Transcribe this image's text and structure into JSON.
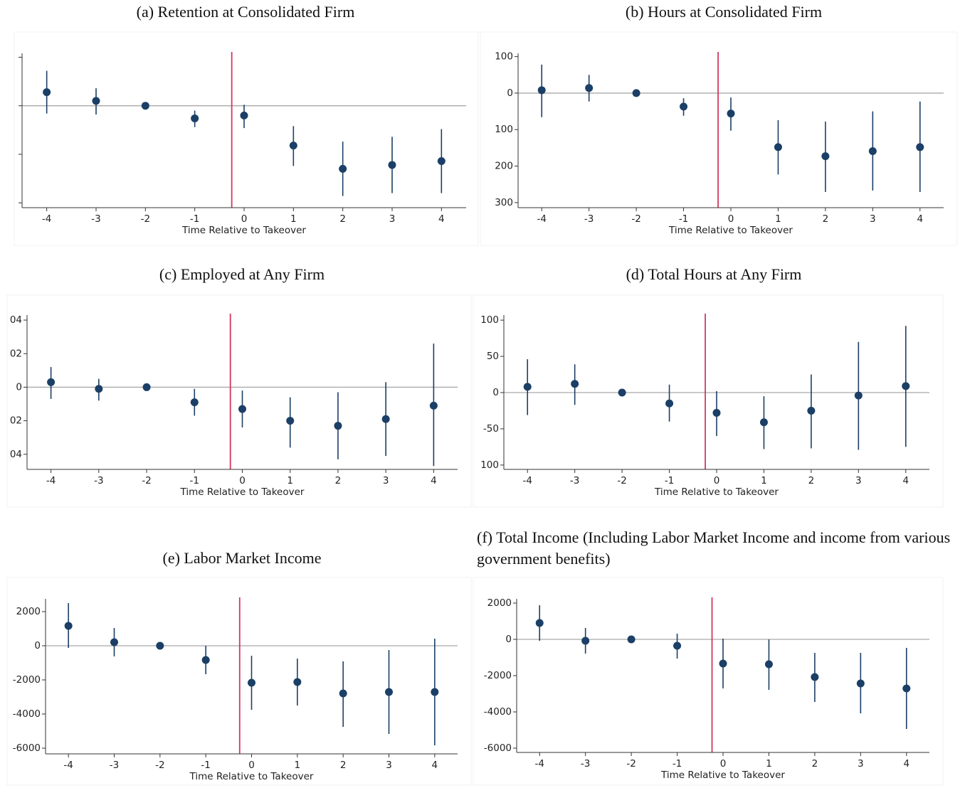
{
  "chart_data": [
    {
      "type": "errorbar",
      "title": "(a) Retention at Consolidated Firm",
      "xlabel": "Time Relative to Takeover",
      "x": [
        -4,
        -3,
        -2,
        -1,
        0,
        1,
        2,
        3,
        4
      ],
      "xlim": [
        -4.5,
        4.5
      ],
      "xticks": [
        -4,
        -3,
        -2,
        -1,
        0,
        1,
        2,
        3,
        4
      ],
      "ylim": [
        -0.105,
        0.054
      ],
      "yticks": [
        0.05,
        0,
        -0.05,
        -0.1
      ],
      "ytick_labels": false,
      "series": [
        {
          "color": "#1b3f66",
          "values": [
            0.014,
            0.005,
            0,
            -0.013,
            -0.01,
            -0.041,
            -0.065,
            -0.061,
            -0.057
          ],
          "ci_low": [
            -0.008,
            -0.009,
            0,
            -0.022,
            -0.023,
            -0.062,
            -0.093,
            -0.09,
            -0.09
          ],
          "ci_high": [
            0.036,
            0.018,
            0,
            -0.005,
            0.001,
            -0.021,
            -0.037,
            -0.032,
            -0.024
          ]
        }
      ],
      "hline": 0,
      "vline": -0.25,
      "vline_color": "#d2385f"
    },
    {
      "type": "errorbar",
      "title": "(b) Hours at Consolidated Firm",
      "xlabel": "Time Relative to Takeover",
      "x": [
        -4,
        -3,
        -2,
        -1,
        0,
        1,
        2,
        3,
        4
      ],
      "xlim": [
        -4.5,
        4.5
      ],
      "xticks": [
        -4,
        -3,
        -2,
        -1,
        0,
        1,
        2,
        3,
        4
      ],
      "ylim": [
        -314,
        109
      ],
      "yticks": [
        100,
        0,
        {
          "value": -100,
          "label": "100"
        },
        {
          "value": -200,
          "label": "200"
        },
        {
          "value": -300,
          "label": "300"
        }
      ],
      "series": [
        {
          "color": "#1b3f66",
          "values": [
            8,
            14,
            0,
            -37,
            -56,
            -148,
            -173,
            -159,
            -148
          ],
          "ci_low": [
            -66,
            -23,
            0,
            -62,
            -103,
            -223,
            -271,
            -267,
            -271
          ],
          "ci_high": [
            78,
            50,
            0,
            -14,
            -12,
            -74,
            -78,
            -50,
            -23
          ]
        }
      ],
      "hline": 0,
      "vline": -0.27,
      "vline_color": "#d2385f"
    },
    {
      "type": "errorbar",
      "title": "(c) Employed at Any Firm",
      "xlabel": "Time Relative to Takeover",
      "x": [
        -4,
        -3,
        -2,
        -1,
        0,
        1,
        2,
        3,
        4
      ],
      "xlim": [
        -4.5,
        4.5
      ],
      "xticks": [
        -4,
        -3,
        -2,
        -1,
        0,
        1,
        2,
        3,
        4
      ],
      "ylim": [
        -0.049,
        0.043
      ],
      "yticks": [
        {
          "value": 0.04,
          "label": "04"
        },
        {
          "value": 0.02,
          "label": "02"
        },
        0,
        {
          "value": -0.02,
          "label": "02"
        },
        {
          "value": -0.04,
          "label": "04"
        }
      ],
      "series": [
        {
          "color": "#1b3f66",
          "values": [
            0.003,
            -0.001,
            0,
            -0.009,
            -0.013,
            -0.02,
            -0.023,
            -0.019,
            -0.011
          ],
          "ci_low": [
            -0.007,
            -0.008,
            0,
            -0.017,
            -0.024,
            -0.036,
            -0.043,
            -0.041,
            -0.047
          ],
          "ci_high": [
            0.012,
            0.005,
            0,
            -0.001,
            -0.002,
            -0.006,
            -0.003,
            0.003,
            0.026
          ]
        }
      ],
      "hline": 0,
      "vline": -0.25,
      "vline_color": "#d2385f"
    },
    {
      "type": "errorbar",
      "title": "(d) Total Hours at Any Firm",
      "xlabel": "Time Relative to Takeover",
      "x": [
        -4,
        -3,
        -2,
        -1,
        0,
        1,
        2,
        3,
        4
      ],
      "xlim": [
        -4.5,
        4.5
      ],
      "xticks": [
        -4,
        -3,
        -2,
        -1,
        0,
        1,
        2,
        3,
        4
      ],
      "ylim": [
        -106,
        107
      ],
      "yticks": [
        100,
        50,
        0,
        -50,
        {
          "value": -100,
          "label": "100"
        }
      ],
      "series": [
        {
          "color": "#1b3f66",
          "values": [
            8,
            12,
            0,
            -15,
            -28,
            -41,
            -25,
            -4,
            9
          ],
          "ci_low": [
            -31,
            -17,
            0,
            -40,
            -60,
            -78,
            -77,
            -79,
            -75
          ],
          "ci_high": [
            46,
            39,
            0,
            11,
            2,
            -5,
            25,
            70,
            92
          ]
        }
      ],
      "hline": 0,
      "vline": -0.24,
      "vline_color": "#d2385f"
    },
    {
      "type": "errorbar",
      "title": "(e) Labor Market Income",
      "xlabel": "Time Relative to Takeover",
      "x": [
        -4,
        -3,
        -2,
        -1,
        0,
        1,
        2,
        3,
        4
      ],
      "xlim": [
        -4.5,
        4.5
      ],
      "xticks": [
        -4,
        -3,
        -2,
        -1,
        0,
        1,
        2,
        3,
        4
      ],
      "ylim": [
        -6333,
        2750
      ],
      "yticks": [
        2000,
        0,
        -2000,
        -4000,
        -6000
      ],
      "series": [
        {
          "color": "#1b3f66",
          "values": [
            1167,
            208,
            0,
            -833,
            -2167,
            -2125,
            -2792,
            -2708,
            -2708
          ],
          "ci_low": [
            -125,
            -625,
            0,
            -1667,
            -3750,
            -3500,
            -4750,
            -5167,
            -5833
          ],
          "ci_high": [
            2500,
            1042,
            0,
            0,
            -583,
            -750,
            -917,
            -250,
            417
          ]
        }
      ],
      "hline": 0,
      "vline": -0.26,
      "vline_color": "#d2385f"
    },
    {
      "type": "errorbar",
      "title": "(f) Total Income (Including Labor Market Income and income from various government benefits)",
      "xlabel": "Time Relative to Takeover",
      "x": [
        -4,
        -3,
        -2,
        -1,
        0,
        1,
        2,
        3,
        4
      ],
      "xlim": [
        -4.5,
        4.5
      ],
      "xticks": [
        -4,
        -3,
        -2,
        -1,
        0,
        1,
        2,
        3,
        4
      ],
      "ylim": [
        -6235,
        2235
      ],
      "yticks": [
        2000,
        0,
        -2000,
        -4000,
        -6000
      ],
      "series": [
        {
          "color": "#1b3f66",
          "values": [
            902,
            -78,
            0,
            -353,
            -1333,
            -1373,
            -2078,
            -2431,
            -2706
          ],
          "ci_low": [
            -78,
            -784,
            0,
            -1059,
            -2706,
            -2784,
            -3451,
            -4078,
            -4941
          ],
          "ci_high": [
            1882,
            627,
            0,
            314,
            39,
            0,
            -745,
            -745,
            -470
          ]
        }
      ],
      "hline": 0,
      "vline": -0.24,
      "vline_color": "#d2385f"
    }
  ]
}
